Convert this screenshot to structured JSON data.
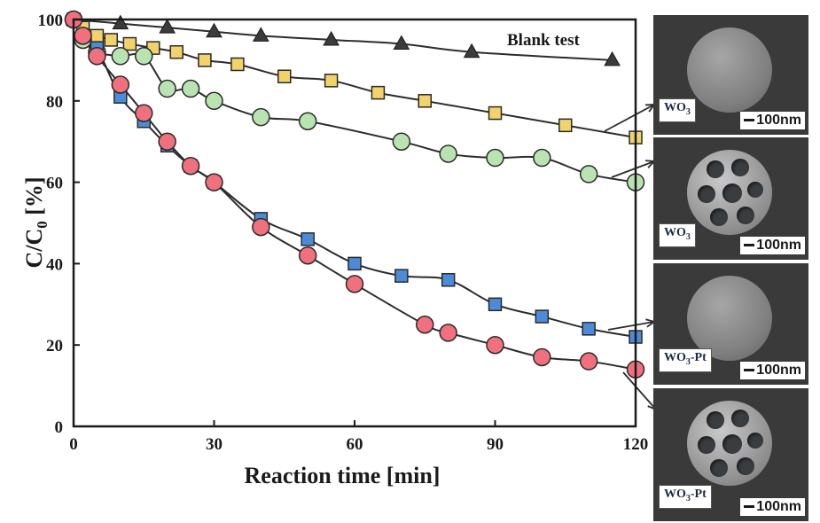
{
  "chart_data": {
    "type": "scatter",
    "title": "",
    "xlabel": "Reaction time [min]",
    "ylabel_main": "C/C",
    "ylabel_sub": "0",
    "ylabel_tail": " [%]",
    "xlim": [
      0,
      120
    ],
    "ylim": [
      0,
      100
    ],
    "xticks": [
      "0",
      "30",
      "60",
      "90",
      "120"
    ],
    "yticks": [
      "0",
      "20",
      "40",
      "60",
      "80",
      "100"
    ],
    "grid": false,
    "annotation": "Blank test",
    "series": [
      {
        "marker": "triangle",
        "color": "#3b3b3b",
        "x": [
          0,
          10,
          20,
          30,
          40,
          55,
          70,
          85,
          115
        ],
        "y": [
          100,
          99,
          98,
          97,
          96,
          95,
          94,
          92,
          90
        ]
      },
      {
        "marker": "square",
        "color": "#f2d26a",
        "x": [
          0,
          2,
          5,
          8,
          12,
          17,
          22,
          28,
          35,
          45,
          55,
          65,
          75,
          90,
          105,
          120
        ],
        "y": [
          100,
          98,
          96,
          95,
          94,
          93,
          92,
          90,
          89,
          86,
          85,
          82,
          80,
          77,
          74,
          71
        ]
      },
      {
        "marker": "circle",
        "color": "#b9e4b1",
        "x": [
          0,
          2,
          5,
          10,
          15,
          20,
          25,
          30,
          40,
          50,
          70,
          80,
          90,
          100,
          110,
          120
        ],
        "y": [
          100,
          95,
          92,
          91,
          91,
          83,
          83,
          80,
          76,
          75,
          70,
          67,
          66,
          66,
          62,
          60
        ]
      },
      {
        "marker": "square",
        "color": "#4c8bd8",
        "x": [
          0,
          2,
          5,
          10,
          15,
          20,
          25,
          30,
          40,
          50,
          60,
          70,
          80,
          90,
          100,
          110,
          120
        ],
        "y": [
          100,
          96,
          93,
          81,
          75,
          69,
          64,
          60,
          51,
          46,
          40,
          37,
          36,
          30,
          27,
          24,
          22
        ]
      },
      {
        "marker": "circle",
        "color": "#f0707e",
        "x": [
          0,
          2,
          5,
          10,
          15,
          20,
          25,
          30,
          40,
          50,
          60,
          75,
          80,
          90,
          100,
          110,
          120
        ],
        "y": [
          100,
          96,
          91,
          84,
          77,
          70,
          64,
          60,
          49,
          42,
          35,
          25,
          23,
          20,
          17,
          16,
          14
        ]
      }
    ]
  },
  "panels": [
    {
      "label": "WO",
      "label_sub": "3",
      "label_tail": "",
      "scale": "100nm",
      "porous": false
    },
    {
      "label": "WO",
      "label_sub": "3",
      "label_tail": "",
      "scale": "100nm",
      "porous": true
    },
    {
      "label": "WO",
      "label_sub": "3",
      "label_tail": "-Pt",
      "scale": "100nm",
      "porous": false
    },
    {
      "label": "WO",
      "label_sub": "3",
      "label_tail": "-Pt",
      "scale": "100nm",
      "porous": true
    }
  ]
}
